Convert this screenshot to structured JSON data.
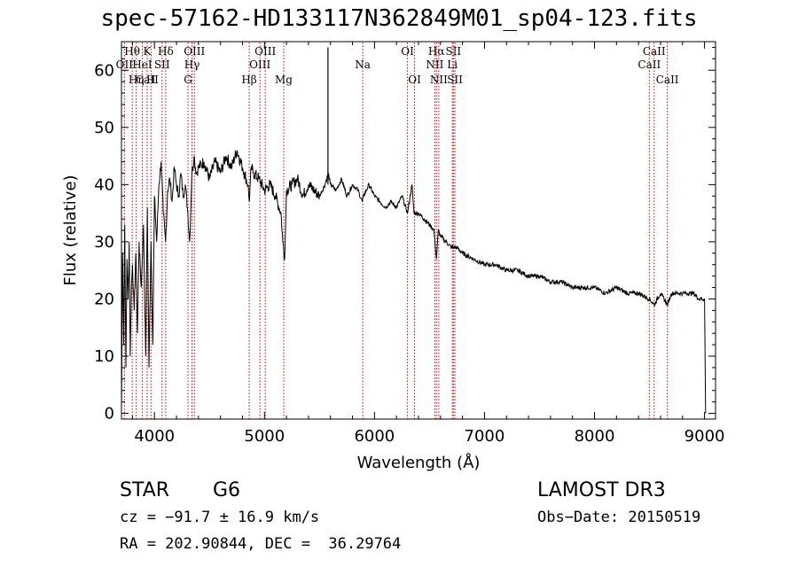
{
  "chart_data": {
    "type": "line",
    "title": "spec-57162-HD133117N362849M01_sp04-123.fits",
    "xlabel": "Wavelength (Å)",
    "ylabel": "Flux (relative)",
    "xlim": [
      3700,
      9100
    ],
    "ylim": [
      -1,
      65
    ],
    "xticks": [
      4000,
      5000,
      6000,
      7000,
      8000,
      9000
    ],
    "yticks": [
      0,
      10,
      20,
      30,
      40,
      50,
      60
    ],
    "series": [
      {
        "name": "flux",
        "x": [
          3700,
          3710,
          3720,
          3730,
          3740,
          3750,
          3760,
          3770,
          3780,
          3790,
          3800,
          3815,
          3830,
          3845,
          3860,
          3880,
          3900,
          3920,
          3935,
          3950,
          3968,
          3985,
          4000,
          4020,
          4040,
          4060,
          4080,
          4101,
          4120,
          4140,
          4160,
          4180,
          4200,
          4220,
          4240,
          4260,
          4280,
          4300,
          4320,
          4340,
          4360,
          4380,
          4400,
          4450,
          4500,
          4550,
          4600,
          4650,
          4700,
          4750,
          4800,
          4850,
          4861,
          4880,
          4900,
          4950,
          5000,
          5050,
          5100,
          5150,
          5167,
          5183,
          5200,
          5250,
          5300,
          5350,
          5400,
          5450,
          5500,
          5550,
          5580,
          5600,
          5650,
          5700,
          5750,
          5800,
          5850,
          5890,
          5900,
          5950,
          6000,
          6050,
          6100,
          6150,
          6200,
          6250,
          6300,
          6340,
          6360,
          6400,
          6450,
          6500,
          6540,
          6563,
          6580,
          6600,
          6650,
          6700,
          6750,
          6800,
          6900,
          7000,
          7100,
          7200,
          7300,
          7400,
          7500,
          7600,
          7700,
          7800,
          7900,
          8000,
          8100,
          8200,
          8300,
          8400,
          8498,
          8542,
          8600,
          8662,
          8700,
          8750,
          8800,
          8850,
          8900,
          8950,
          9000,
          9010
        ],
        "y": [
          0,
          28,
          12,
          33,
          8,
          27,
          20,
          30,
          10,
          22,
          26,
          18,
          28,
          14,
          30,
          22,
          33,
          10,
          36,
          8,
          30,
          12,
          38,
          30,
          40,
          44,
          35,
          30,
          39,
          41,
          37,
          43,
          40,
          38,
          42,
          38,
          40,
          36,
          30,
          42,
          45,
          42,
          43,
          44,
          41,
          44,
          42,
          45,
          43,
          46,
          43,
          40,
          37,
          43,
          42,
          41,
          39,
          40,
          38,
          35,
          30,
          27,
          39,
          40,
          41,
          38,
          40,
          39,
          38,
          40,
          42,
          40,
          39,
          41,
          38,
          40,
          39,
          37,
          38,
          40,
          38,
          37,
          36,
          37,
          36,
          38,
          35,
          40,
          35,
          35,
          34,
          33,
          32,
          27,
          32,
          31,
          30,
          29,
          29,
          28,
          27,
          26,
          26,
          25,
          25,
          24,
          24,
          23,
          23,
          22,
          22,
          22,
          21,
          22,
          21,
          21,
          20,
          19,
          21,
          19,
          21,
          21,
          21,
          21,
          21,
          20,
          20,
          0
        ],
        "color": "#000000"
      }
    ],
    "spike": {
      "x": 5577,
      "y": 64
    },
    "lines": [
      {
        "label": "Hθ",
        "x": 3798,
        "row": 1
      },
      {
        "label": "OII",
        "x": 3727,
        "row": 2
      },
      {
        "label": "Hη",
        "x": 3835,
        "row": 3
      },
      {
        "label": "CaII",
        "x": 3934,
        "row": 3
      },
      {
        "label": "HeI",
        "x": 3889,
        "row": 2
      },
      {
        "label": "K",
        "x": 3934,
        "row": 1
      },
      {
        "label": "SII",
        "x": 4069,
        "row": 2
      },
      {
        "label": "H",
        "x": 3968,
        "row": 3
      },
      {
        "label": "Hδ",
        "x": 4102,
        "row": 1
      },
      {
        "label": "OIII",
        "x": 4363,
        "row": 1
      },
      {
        "label": "Hγ",
        "x": 4341,
        "row": 2
      },
      {
        "label": "G",
        "x": 4305,
        "row": 3
      },
      {
        "label": "Hβ",
        "x": 4861,
        "row": 3
      },
      {
        "label": "OIII",
        "x": 5007,
        "row": 1
      },
      {
        "label": "OIII",
        "x": 4959,
        "row": 2
      },
      {
        "label": "Mg",
        "x": 5175,
        "row": 3
      },
      {
        "label": "Na",
        "x": 5893,
        "row": 2
      },
      {
        "label": "OI",
        "x": 6300,
        "row": 1
      },
      {
        "label": "OI",
        "x": 6364,
        "row": 3
      },
      {
        "label": "Hα",
        "x": 6563,
        "row": 1
      },
      {
        "label": "SII",
        "x": 6717,
        "row": 1
      },
      {
        "label": "NII",
        "x": 6548,
        "row": 2
      },
      {
        "label": "Li",
        "x": 6708,
        "row": 2
      },
      {
        "label": "NII",
        "x": 6584,
        "row": 3
      },
      {
        "label": "SII",
        "x": 6731,
        "row": 3
      },
      {
        "label": "CaII",
        "x": 8542,
        "row": 1
      },
      {
        "label": "CaII",
        "x": 8498,
        "row": 2
      },
      {
        "label": "CaII",
        "x": 8662,
        "row": 3
      }
    ]
  },
  "info": {
    "class": "STAR",
    "subclass": "G6",
    "survey": "LAMOST DR3",
    "cz": "cz = −91.7 ± 16.9 km/s",
    "obs_date": "Obs−Date: 20150519",
    "coords": "RA = 202.90844, DEC =  36.29764"
  }
}
